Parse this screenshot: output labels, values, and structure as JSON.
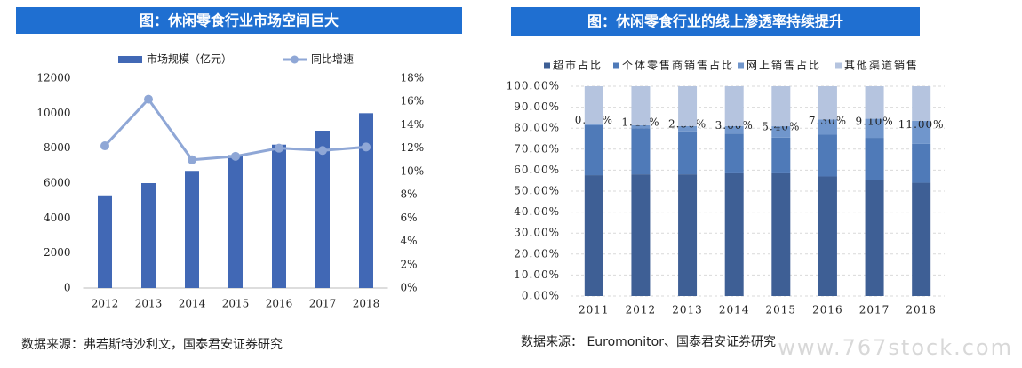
{
  "chart_data": [
    {
      "type": "bar",
      "title": "图：休闲零食行业市场空间巨大",
      "categories": [
        "2012",
        "2013",
        "2014",
        "2015",
        "2016",
        "2017",
        "2018"
      ],
      "series": [
        {
          "name": "市场规模（亿元）",
          "color": "#4168b5",
          "values": [
            5300,
            6000,
            6700,
            7600,
            8200,
            9000,
            10000
          ]
        },
        {
          "name": "同比增速",
          "color": "#8fa7d6",
          "type": "line",
          "axis": "y2",
          "values": [
            12.2,
            16.2,
            11.0,
            11.3,
            12.0,
            11.8,
            12.1
          ]
        }
      ],
      "ylim": [
        0,
        12000
      ],
      "yticks": [
        0,
        2000,
        4000,
        6000,
        8000,
        10000,
        12000
      ],
      "y2lim": [
        0,
        18
      ],
      "y2ticks": [
        {
          "value": 0,
          "label": "0%"
        },
        {
          "value": 2,
          "label": "2%"
        },
        {
          "value": 4,
          "label": "4%"
        },
        {
          "value": 6,
          "label": "6%"
        },
        {
          "value": 8,
          "label": "8%"
        },
        {
          "value": 10,
          "label": "10%"
        },
        {
          "value": 12,
          "label": "12%"
        },
        {
          "value": 14,
          "label": "14%"
        },
        {
          "value": 16,
          "label": "16%"
        },
        {
          "value": 18,
          "label": "18%"
        }
      ],
      "grid": false,
      "source": "数据来源：弗若斯特沙利文，国泰君安证券研究"
    },
    {
      "type": "stacked_bar",
      "title": "图：休闲零食行业的线上渗透率持续提升",
      "categories": [
        "2011",
        "2012",
        "2013",
        "2014",
        "2015",
        "2016",
        "2017",
        "2018"
      ],
      "series": [
        {
          "name": "超市占比",
          "color": "#3e5f95",
          "values": [
            57.6,
            58,
            58,
            58.5,
            58.5,
            57,
            55.5,
            54
          ]
        },
        {
          "name": "个体零售商销售占比",
          "color": "#4f7ab8",
          "values": [
            23.8,
            22,
            20.5,
            18.9,
            17,
            19.9,
            19.9,
            18.5
          ]
        },
        {
          "name": "网上销售占比",
          "color": "#7096cc",
          "values": [
            0.6,
            1.4,
            2.5,
            3.6,
            5.4,
            7.3,
            9.1,
            11
          ],
          "value_labels": [
            "0.60%",
            "1.40%",
            "2.50%",
            "3.60%",
            "5.40%",
            "7.30%",
            "9.10%",
            "11.00%"
          ]
        },
        {
          "name": "其他渠道销售",
          "color": "#b5c4df",
          "values": [
            18,
            18.6,
            19,
            19,
            19.1,
            15.8,
            15.5,
            16.5
          ]
        }
      ],
      "ylim": [
        0,
        100
      ],
      "yticks": [
        {
          "value": 0,
          "label": "0.00%"
        },
        {
          "value": 10,
          "label": "10.00%"
        },
        {
          "value": 20,
          "label": "20.00%"
        },
        {
          "value": 30,
          "label": "30.00%"
        },
        {
          "value": 40,
          "label": "40.00%"
        },
        {
          "value": 50,
          "label": "50.00%"
        },
        {
          "value": 60,
          "label": "60.00%"
        },
        {
          "value": 70,
          "label": "70.00%"
        },
        {
          "value": 80,
          "label": "80.00%"
        },
        {
          "value": 90,
          "label": "90.00%"
        },
        {
          "value": 100,
          "label": "100.00%"
        }
      ],
      "grid": true,
      "source": "数据来源： Euromonitor、国泰君安证券研究"
    }
  ],
  "watermark": "www.767stock.com"
}
